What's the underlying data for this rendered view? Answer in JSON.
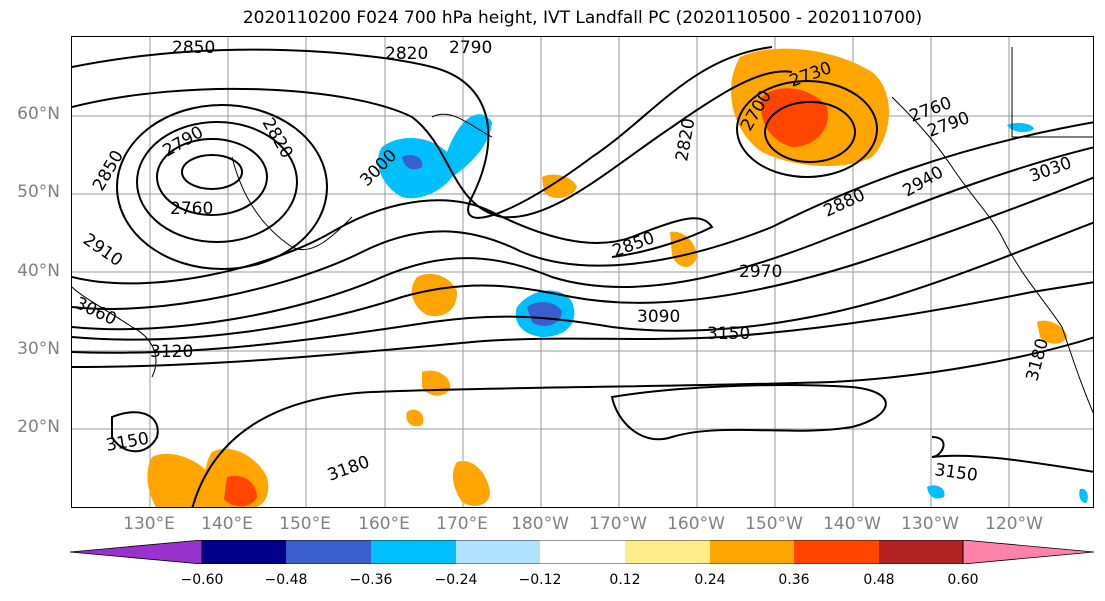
{
  "title": "2020110200 F024 700 hPa height, IVT Landfall PC (2020110500 - 2020110700)",
  "map": {
    "lat_labels": [
      "60°N",
      "50°N",
      "40°N",
      "30°N",
      "20°N"
    ],
    "lon_labels": [
      "130°E",
      "140°E",
      "150°E",
      "160°E",
      "170°E",
      "180°W",
      "170°W",
      "160°W",
      "150°W",
      "140°W",
      "130°W",
      "120°W"
    ],
    "contour_labels": [
      "2850",
      "2820",
      "2790",
      "2790",
      "2820",
      "2850",
      "2760",
      "2910",
      "3060",
      "3120",
      "3000",
      "2850",
      "2970",
      "3090",
      "3150",
      "2730",
      "2700",
      "2820",
      "2760",
      "2790",
      "2880",
      "2940",
      "3030",
      "3150",
      "3180",
      "3150",
      "3180"
    ],
    "ivt_field_name": "IVT Landfall PC",
    "positive_color_example": "#ffa500",
    "negative_color_example": "#00bfff"
  },
  "colorbar": {
    "colors": [
      "#9932cc",
      "#00008b",
      "#3a5fcd",
      "#00bfff",
      "#b0e2ff",
      "#ffffff",
      "#ffec8b",
      "#ffa500",
      "#ff4500",
      "#b22222",
      "#ff82ab"
    ],
    "tick_labels": [
      "−0.60",
      "−0.48",
      "−0.36",
      "−0.24",
      "−0.12",
      "0.12",
      "0.24",
      "0.36",
      "0.48",
      "0.60"
    ]
  }
}
